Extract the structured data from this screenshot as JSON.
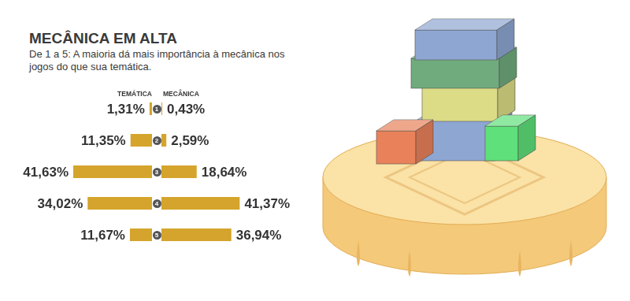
{
  "chart_data": {
    "type": "bar",
    "orientation": "horizontal",
    "title": "MECÂNICA EM ALTA",
    "subtitle": "De 1 a 5: A maioria dá mais importância à mecânica nos jogos do que sua temática.",
    "categories": [
      "1",
      "2",
      "3",
      "4",
      "5"
    ],
    "series": [
      {
        "name": "TEMÁTICA",
        "color": "#d5a42c",
        "values": [
          1.31,
          11.35,
          41.63,
          34.02,
          11.67
        ],
        "value_labels": [
          "1,31%",
          "11,35%",
          "41,63%",
          "34,02%",
          "11,67%"
        ]
      },
      {
        "name": "MECÂNICA",
        "color": "#d5a42c",
        "values": [
          0.43,
          2.59,
          18.64,
          41.37,
          36.94
        ],
        "value_labels": [
          "0,43%",
          "2,59%",
          "18,64%",
          "41,37%",
          "36,94%"
        ]
      }
    ],
    "data_labels": true,
    "tick_labels": "y",
    "grid": false
  }
}
